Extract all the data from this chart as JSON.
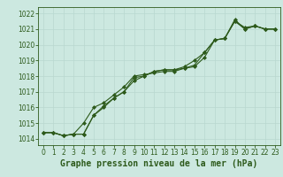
{
  "xlabel": "Graphe pression niveau de la mer (hPa)",
  "background_color": "#cce8e0",
  "line_color": "#2d5a1b",
  "grid_color": "#b8d8d0",
  "xlim": [
    -0.5,
    23.5
  ],
  "ylim": [
    1013.6,
    1022.4
  ],
  "yticks": [
    1014,
    1015,
    1016,
    1017,
    1018,
    1019,
    1020,
    1021,
    1022
  ],
  "xticks": [
    0,
    1,
    2,
    3,
    4,
    5,
    6,
    7,
    8,
    9,
    10,
    11,
    12,
    13,
    14,
    15,
    16,
    17,
    18,
    19,
    20,
    21,
    22,
    23
  ],
  "series": [
    [
      1014.4,
      1014.4,
      1014.2,
      1014.3,
      1015.0,
      1016.0,
      1016.3,
      1016.8,
      1017.3,
      1018.0,
      1018.1,
      1018.2,
      1018.3,
      1018.3,
      1018.5,
      1018.6,
      1019.2,
      1020.3,
      1020.4,
      1021.6,
      1021.0,
      1021.2,
      1021.0,
      1021.0
    ],
    [
      1014.4,
      1014.4,
      1014.2,
      1014.3,
      1014.3,
      1015.5,
      1016.1,
      1016.6,
      1017.0,
      1017.7,
      1018.0,
      1018.3,
      1018.4,
      1018.4,
      1018.5,
      1018.7,
      1019.5,
      1020.3,
      1020.4,
      1021.5,
      1021.0,
      1021.2,
      1021.0,
      1021.0
    ],
    [
      1014.4,
      1014.4,
      1014.2,
      1014.3,
      1014.3,
      1015.5,
      1016.0,
      1016.6,
      1017.0,
      1017.9,
      1018.0,
      1018.3,
      1018.4,
      1018.4,
      1018.6,
      1019.0,
      1019.5,
      1020.3,
      1020.4,
      1021.5,
      1021.1,
      1021.2,
      1021.0,
      1021.0
    ]
  ],
  "tick_fontsize": 5.5,
  "xlabel_fontsize": 7.0,
  "marker_size": 2.0,
  "linewidth": 0.8
}
